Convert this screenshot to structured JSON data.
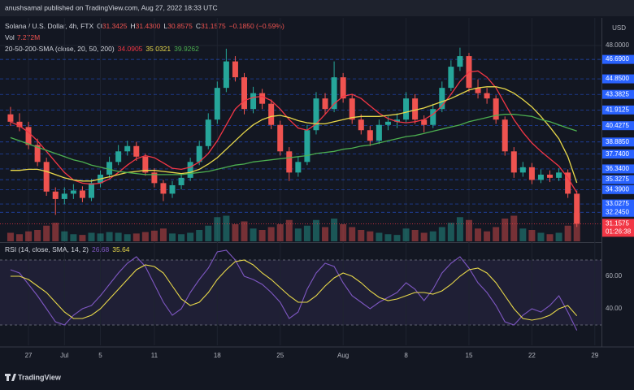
{
  "chart_data": {
    "type": "candlestick",
    "published": "anushsamal published on TradingView.com, Aug 27, 2022 18:33 UTC",
    "title": "Solana / U.S. Dollar, 4h, FTX",
    "ohlc": [
      {
        "label": "O",
        "value": "31.3425"
      },
      {
        "label": "H",
        "value": "31.4300"
      },
      {
        "label": "L",
        "value": "30.8575"
      },
      {
        "label": "C",
        "value": "31.1575"
      }
    ],
    "change": "−0.1850 (−0.59%)",
    "volume_label": "Vol",
    "volume_last": "7.272M",
    "sma_legend": "20-50-200-SMA (close, 20, 50, 200)",
    "currency": "USD",
    "countdown": "01:26:38",
    "current_price": {
      "value": 31.1575,
      "label": "31.1575",
      "color": "#f23645"
    },
    "xlim": [
      -1.17,
      65.74
    ],
    "xticks": [
      {
        "value": 2,
        "label": "27"
      },
      {
        "value": 6,
        "label": "Jul"
      },
      {
        "value": 10,
        "label": "5"
      },
      {
        "value": 16,
        "label": "11"
      },
      {
        "value": 23,
        "label": "18"
      },
      {
        "value": 30,
        "label": "25"
      },
      {
        "value": 37,
        "label": "Aug"
      },
      {
        "value": 44,
        "label": "8"
      },
      {
        "value": 51,
        "label": "15"
      },
      {
        "value": 58,
        "label": "22"
      },
      {
        "value": 65,
        "label": "29"
      }
    ],
    "ylim": [
      29.5,
      50.0
    ],
    "yticks": [
      {
        "value": 48,
        "label": "48.0000"
      }
    ],
    "levels": [
      {
        "value": 46.69,
        "label": "46.6900"
      },
      {
        "value": 44.85,
        "label": "44.8500"
      },
      {
        "value": 43.3825,
        "label": "43.3825"
      },
      {
        "value": 41.9125,
        "label": "41.9125"
      },
      {
        "value": 40.4275,
        "label": "40.4275"
      },
      {
        "value": 38.885,
        "label": "38.8850"
      },
      {
        "value": 37.74,
        "label": "37.7400"
      },
      {
        "value": 36.34,
        "label": "36.3400"
      },
      {
        "value": 35.3275,
        "label": "35.3275"
      },
      {
        "value": 34.39,
        "label": "34.3900"
      },
      {
        "value": 33.0275,
        "label": "33.0275"
      },
      {
        "value": 32.245,
        "label": "32.2450"
      }
    ],
    "level_color": "#2962ff",
    "up_color": "#26a69a",
    "down_color": "#ef5350",
    "candles": [
      [
        41.5,
        42.2,
        40.4,
        40.8
      ],
      [
        40.8,
        41.6,
        39.9,
        40.3
      ],
      [
        40.3,
        40.8,
        38.2,
        38.6
      ],
      [
        38.6,
        39.2,
        36.6,
        37.0
      ],
      [
        37.0,
        37.4,
        33.8,
        34.2
      ],
      [
        34.2,
        34.6,
        32.0,
        33.5
      ],
      [
        33.5,
        34.6,
        33.0,
        34.0
      ],
      [
        34.0,
        34.9,
        33.5,
        34.3
      ],
      [
        34.3,
        34.7,
        33.2,
        33.6
      ],
      [
        33.6,
        35.4,
        33.3,
        35.0
      ],
      [
        35.0,
        36.2,
        34.6,
        35.8
      ],
      [
        35.8,
        37.5,
        35.5,
        37.0
      ],
      [
        37.0,
        38.6,
        36.7,
        38.0
      ],
      [
        38.0,
        39.0,
        37.6,
        38.5
      ],
      [
        38.5,
        38.9,
        37.1,
        37.5
      ],
      [
        37.5,
        37.8,
        35.7,
        36.0
      ],
      [
        36.0,
        36.4,
        34.6,
        35.0
      ],
      [
        35.0,
        35.3,
        33.3,
        34.0
      ],
      [
        34.0,
        35.2,
        33.6,
        34.8
      ],
      [
        34.8,
        35.9,
        34.4,
        35.5
      ],
      [
        35.5,
        37.4,
        35.2,
        37.0
      ],
      [
        37.0,
        39.0,
        36.7,
        38.5
      ],
      [
        38.5,
        41.6,
        38.2,
        41.0
      ],
      [
        41.0,
        44.6,
        40.6,
        44.0
      ],
      [
        44.0,
        47.7,
        43.6,
        46.5
      ],
      [
        46.5,
        47.0,
        44.6,
        45.0
      ],
      [
        45.0,
        45.4,
        41.5,
        42.0
      ],
      [
        42.0,
        44.1,
        41.6,
        43.5
      ],
      [
        43.5,
        43.9,
        42.0,
        42.5
      ],
      [
        42.5,
        42.9,
        40.1,
        40.5
      ],
      [
        40.5,
        40.9,
        37.6,
        38.0
      ],
      [
        38.0,
        38.4,
        35.2,
        36.0
      ],
      [
        36.0,
        37.5,
        35.6,
        37.0
      ],
      [
        37.0,
        40.5,
        36.7,
        40.0
      ],
      [
        40.0,
        43.6,
        39.6,
        43.0
      ],
      [
        43.0,
        43.5,
        41.5,
        42.0
      ],
      [
        42.0,
        46.5,
        41.7,
        45.0
      ],
      [
        45.0,
        45.4,
        42.6,
        43.0
      ],
      [
        43.0,
        43.4,
        40.6,
        41.0
      ],
      [
        41.0,
        41.5,
        39.6,
        40.0
      ],
      [
        40.0,
        40.4,
        38.5,
        39.0
      ],
      [
        39.0,
        41.0,
        38.7,
        40.5
      ],
      [
        40.5,
        41.3,
        40.0,
        40.8
      ],
      [
        40.8,
        41.6,
        40.2,
        41.0
      ],
      [
        41.0,
        43.6,
        40.7,
        43.0
      ],
      [
        43.0,
        43.4,
        40.6,
        41.0
      ],
      [
        41.0,
        41.4,
        39.8,
        40.5
      ],
      [
        40.5,
        42.5,
        40.2,
        42.0
      ],
      [
        42.0,
        44.6,
        41.7,
        44.0
      ],
      [
        44.0,
        46.6,
        43.7,
        46.0
      ],
      [
        46.0,
        47.8,
        45.6,
        47.0
      ],
      [
        47.0,
        47.3,
        43.6,
        44.0
      ],
      [
        44.0,
        44.8,
        43.0,
        43.5
      ],
      [
        43.5,
        44.0,
        42.5,
        43.0
      ],
      [
        43.0,
        43.3,
        40.6,
        41.0
      ],
      [
        41.0,
        41.3,
        37.6,
        38.0
      ],
      [
        38.0,
        38.4,
        35.5,
        36.0
      ],
      [
        36.0,
        37.0,
        35.6,
        36.5
      ],
      [
        36.5,
        36.9,
        34.9,
        35.3
      ],
      [
        35.3,
        36.3,
        35.0,
        35.8
      ],
      [
        35.8,
        36.2,
        35.1,
        35.5
      ],
      [
        35.5,
        36.4,
        35.2,
        36.0
      ],
      [
        36.0,
        36.3,
        33.6,
        34.0
      ],
      [
        34.0,
        34.3,
        30.8575,
        31.1575
      ]
    ],
    "volume_lim": [
      0,
      80
    ],
    "volume": [
      12,
      10,
      14,
      16,
      22,
      26,
      14,
      10,
      9,
      12,
      11,
      13,
      12,
      10,
      11,
      13,
      15,
      18,
      11,
      10,
      12,
      16,
      22,
      34,
      36,
      24,
      28,
      18,
      16,
      20,
      24,
      30,
      18,
      22,
      30,
      20,
      32,
      24,
      20,
      16,
      14,
      12,
      10,
      9,
      18,
      16,
      12,
      14,
      20,
      26,
      34,
      30,
      18,
      14,
      20,
      32,
      36,
      18,
      16,
      12,
      10,
      12,
      22,
      40
    ],
    "series": [
      {
        "color": "#f23645",
        "last": "34.0905",
        "values": [
          40.8,
          40.4,
          39.8,
          39,
          38,
          37,
          36,
          35.3,
          35,
          34.9,
          35,
          35.4,
          36,
          36.7,
          37.3,
          37.6,
          37.4,
          36.9,
          36.4,
          36.3,
          36.5,
          37,
          37.8,
          39,
          40.5,
          42,
          42.8,
          43.1,
          43.2,
          42.8,
          42,
          41,
          40.2,
          40,
          40.6,
          41.5,
          42.5,
          43.2,
          43.4,
          43,
          42.3,
          41.6,
          41.1,
          40.8,
          40.7,
          40.8,
          41,
          41.5,
          42.3,
          43.4,
          44.6,
          45.5,
          45.6,
          45,
          44,
          42.5,
          41,
          39.8,
          38.8,
          38,
          37.3,
          36.6,
          35.5,
          34.09
        ]
      },
      {
        "color": "#e8d84a",
        "last": "35.0321",
        "values": [
          36.2,
          36.2,
          36.3,
          36.3,
          36.1,
          35.8,
          35.5,
          35.3,
          35.2,
          35.2,
          35.4,
          35.6,
          35.8,
          36,
          36.1,
          36.2,
          36.2,
          36.1,
          36,
          35.9,
          36,
          36.3,
          36.8,
          37.4,
          38.2,
          39,
          39.8,
          40.5,
          41,
          41.3,
          41.4,
          41.2,
          40.9,
          40.7,
          40.6,
          40.6,
          40.8,
          41,
          41.2,
          41.3,
          41.3,
          41.3,
          41.4,
          41.5,
          41.7,
          41.9,
          42.1,
          42.4,
          42.7,
          43,
          43.4,
          43.8,
          44,
          44.1,
          44.1,
          43.9,
          43.5,
          42.9,
          42.2,
          41.3,
          40.3,
          39.2,
          37.5,
          35.03
        ]
      },
      {
        "color": "#4caf50",
        "last": "39.9262",
        "values": [
          39.3,
          39.0,
          38.7,
          38.4,
          38.1,
          37.8,
          37.5,
          37.2,
          37,
          36.7,
          36.5,
          36.3,
          36.1,
          36,
          35.9,
          35.8,
          35.8,
          35.8,
          35.8,
          35.8,
          35.9,
          36,
          36.1,
          36.3,
          36.5,
          36.7,
          36.8,
          37,
          37.1,
          37.2,
          37.3,
          37.4,
          37.5,
          37.6,
          37.8,
          37.9,
          38,
          38.2,
          38.3,
          38.5,
          38.6,
          38.8,
          39,
          39.2,
          39.4,
          39.5,
          39.7,
          39.9,
          40.1,
          40.3,
          40.5,
          40.8,
          41,
          41.2,
          41.4,
          41.5,
          41.5,
          41.4,
          41.3,
          41,
          40.8,
          40.5,
          40.2,
          39.93
        ]
      }
    ],
    "rsi_legend": "RSI (14, close, SMA, 14, 2)",
    "rsi_lim": [
      17.5,
      80
    ],
    "rsi_ticks": [
      {
        "value": 60,
        "label": "60.00"
      },
      {
        "value": 40,
        "label": "40.00"
      }
    ],
    "rsi_bands": [
      30,
      70
    ],
    "rsi_series": [
      {
        "color": "#7e57c2",
        "last": "26.68",
        "values": [
          64,
          62,
          55,
          48,
          40,
          32,
          30,
          36,
          40,
          42,
          48,
          55,
          62,
          68,
          72,
          66,
          55,
          44,
          36,
          40,
          50,
          58,
          65,
          75,
          76,
          70,
          60,
          58,
          55,
          50,
          44,
          34,
          38,
          52,
          62,
          68,
          66,
          56,
          48,
          44,
          40,
          44,
          47,
          50,
          56,
          52,
          45,
          52,
          62,
          68,
          72,
          65,
          56,
          50,
          42,
          32,
          30,
          36,
          40,
          38,
          42,
          48,
          38,
          26.68
        ]
      },
      {
        "color": "#e8d84a",
        "last": "35.64",
        "values": [
          60,
          60,
          58,
          54,
          50,
          44,
          38,
          34,
          34,
          36,
          40,
          46,
          52,
          58,
          64,
          67,
          66,
          62,
          54,
          46,
          42,
          44,
          50,
          58,
          64,
          69,
          70,
          67,
          62,
          58,
          53,
          48,
          44,
          44,
          48,
          54,
          59,
          62,
          60,
          56,
          51,
          47,
          45,
          46,
          48,
          50,
          50,
          49,
          51,
          55,
          60,
          64,
          65,
          62,
          56,
          48,
          40,
          34,
          33,
          34,
          36,
          40,
          42,
          35.64
        ]
      }
    ],
    "brand": "TradingView"
  }
}
